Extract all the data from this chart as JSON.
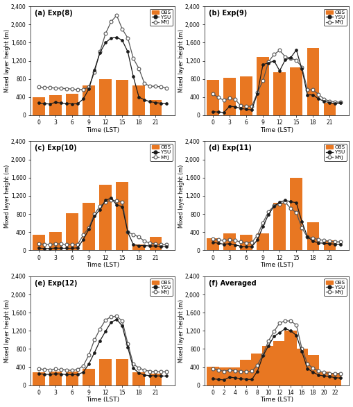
{
  "panels": [
    {
      "label": "(a) Exp(8)",
      "obs_times": [
        0,
        3,
        6,
        9,
        12,
        15,
        18,
        21
      ],
      "obs_values": [
        400,
        450,
        475,
        650,
        800,
        775,
        650,
        330
      ],
      "ysu_times": [
        0,
        1,
        2,
        3,
        4,
        5,
        6,
        7,
        8,
        9,
        10,
        11,
        12,
        13,
        14,
        15,
        16,
        17,
        18,
        19,
        20,
        21,
        22,
        23
      ],
      "ysu_values": [
        270,
        255,
        250,
        285,
        270,
        260,
        250,
        255,
        360,
        580,
        1000,
        1380,
        1600,
        1700,
        1720,
        1650,
        1400,
        850,
        400,
        340,
        300,
        280,
        265,
        255
      ],
      "myj_times": [
        0,
        1,
        2,
        3,
        4,
        5,
        6,
        7,
        8,
        9,
        10,
        11,
        12,
        13,
        14,
        15,
        16,
        17,
        18,
        19,
        20,
        21,
        22,
        23
      ],
      "myj_values": [
        620,
        615,
        610,
        600,
        595,
        588,
        578,
        568,
        570,
        620,
        950,
        1400,
        1800,
        2060,
        2200,
        1900,
        1700,
        1250,
        1030,
        700,
        640,
        640,
        625,
        600
      ]
    },
    {
      "label": "(b) Exp(9)",
      "obs_times": [
        0,
        3,
        6,
        9,
        12,
        15,
        18,
        21
      ],
      "obs_values": [
        780,
        820,
        850,
        1290,
        950,
        1050,
        1490,
        280
      ],
      "ysu_times": [
        0,
        1,
        2,
        3,
        4,
        5,
        6,
        7,
        8,
        9,
        10,
        11,
        12,
        13,
        14,
        15,
        16,
        17,
        18,
        19,
        20,
        21,
        22,
        23
      ],
      "ysu_values": [
        80,
        70,
        65,
        200,
        185,
        155,
        130,
        120,
        480,
        1120,
        1150,
        1200,
        980,
        1220,
        1270,
        1440,
        1020,
        450,
        450,
        360,
        310,
        275,
        260,
        270
      ],
      "myj_times": [
        0,
        1,
        2,
        3,
        4,
        5,
        6,
        7,
        8,
        9,
        10,
        11,
        12,
        13,
        14,
        15,
        16,
        17,
        18,
        19,
        20,
        21,
        22,
        23
      ],
      "myj_values": [
        470,
        390,
        330,
        375,
        350,
        210,
        200,
        195,
        500,
        760,
        1180,
        1340,
        1430,
        1290,
        1260,
        1210,
        1060,
        570,
        560,
        460,
        355,
        310,
        295,
        285
      ]
    },
    {
      "label": "(c) Exp(10)",
      "obs_times": [
        0,
        3,
        6,
        9,
        12,
        15,
        18,
        21
      ],
      "obs_values": [
        350,
        400,
        820,
        1050,
        1450,
        1500,
        130,
        300
      ],
      "ysu_times": [
        0,
        1,
        2,
        3,
        4,
        5,
        6,
        7,
        8,
        9,
        10,
        11,
        12,
        13,
        14,
        15,
        16,
        17,
        18,
        19,
        20,
        21,
        22,
        23
      ],
      "ysu_values": [
        50,
        40,
        40,
        50,
        45,
        45,
        45,
        55,
        240,
        460,
        750,
        900,
        1100,
        1150,
        1000,
        960,
        400,
        125,
        105,
        105,
        95,
        95,
        85,
        75
      ],
      "myj_times": [
        0,
        1,
        2,
        3,
        4,
        5,
        6,
        7,
        8,
        9,
        10,
        11,
        12,
        13,
        14,
        15,
        16,
        17,
        18,
        19,
        20,
        21,
        22,
        23
      ],
      "myj_values": [
        150,
        130,
        125,
        148,
        138,
        128,
        125,
        128,
        340,
        495,
        800,
        970,
        1060,
        1110,
        1090,
        1060,
        405,
        345,
        295,
        200,
        160,
        140,
        128,
        125
      ]
    },
    {
      "label": "(d) Exp(11)",
      "obs_times": [
        0,
        3,
        6,
        9,
        12,
        15,
        18,
        21
      ],
      "obs_values": [
        260,
        380,
        340,
        370,
        1050,
        1600,
        620,
        220
      ],
      "ysu_times": [
        0,
        1,
        2,
        3,
        4,
        5,
        6,
        7,
        8,
        9,
        10,
        11,
        12,
        13,
        14,
        15,
        16,
        17,
        18,
        19,
        20,
        21,
        22,
        23
      ],
      "ysu_values": [
        175,
        155,
        135,
        145,
        120,
        90,
        75,
        80,
        230,
        520,
        790,
        970,
        1060,
        1100,
        1070,
        1050,
        630,
        300,
        200,
        165,
        155,
        145,
        135,
        130
      ],
      "myj_times": [
        0,
        1,
        2,
        3,
        4,
        5,
        6,
        7,
        8,
        9,
        10,
        11,
        12,
        13,
        14,
        15,
        16,
        17,
        18,
        19,
        20,
        21,
        22,
        23
      ],
      "myj_values": [
        250,
        230,
        215,
        230,
        215,
        185,
        165,
        175,
        330,
        610,
        850,
        980,
        1020,
        1060,
        920,
        830,
        490,
        290,
        265,
        240,
        215,
        200,
        190,
        185
      ]
    },
    {
      "label": "(e) Exp(12)",
      "obs_times": [
        0,
        3,
        6,
        9,
        12,
        15,
        18,
        21
      ],
      "obs_values": [
        290,
        300,
        310,
        370,
        580,
        580,
        280,
        250
      ],
      "ysu_times": [
        0,
        1,
        2,
        3,
        4,
        5,
        6,
        7,
        8,
        9,
        10,
        11,
        12,
        13,
        14,
        15,
        16,
        17,
        18,
        19,
        20,
        21,
        22,
        23
      ],
      "ysu_values": [
        255,
        245,
        240,
        255,
        248,
        238,
        235,
        240,
        290,
        470,
        720,
        980,
        1190,
        1390,
        1450,
        1310,
        840,
        380,
        270,
        225,
        215,
        210,
        205,
        205
      ],
      "myj_times": [
        0,
        1,
        2,
        3,
        4,
        5,
        6,
        7,
        8,
        9,
        10,
        11,
        12,
        13,
        14,
        15,
        16,
        17,
        18,
        19,
        20,
        21,
        22,
        23
      ],
      "myj_values": [
        365,
        350,
        340,
        360,
        350,
        335,
        330,
        348,
        430,
        670,
        1000,
        1240,
        1440,
        1510,
        1520,
        1420,
        920,
        465,
        385,
        335,
        310,
        302,
        300,
        298
      ]
    },
    {
      "label": "(f) Averaged",
      "obs_times": [
        0,
        2,
        4,
        6,
        8,
        10,
        12,
        14,
        16,
        18,
        20,
        22
      ],
      "obs_values": [
        416,
        390,
        395,
        560,
        700,
        870,
        970,
        1200,
        800,
        670,
        310,
        275
      ],
      "ysu_times": [
        0,
        1,
        2,
        3,
        4,
        5,
        6,
        7,
        8,
        9,
        10,
        11,
        12,
        13,
        14,
        15,
        16,
        17,
        18,
        19,
        20,
        21,
        22,
        23
      ],
      "ysu_values": [
        145,
        130,
        120,
        180,
        165,
        148,
        132,
        130,
        310,
        650,
        870,
        1080,
        1160,
        1250,
        1200,
        1100,
        740,
        370,
        290,
        225,
        210,
        192,
        170,
        158
      ],
      "myj_times": [
        0,
        1,
        2,
        3,
        4,
        5,
        6,
        7,
        8,
        9,
        10,
        11,
        12,
        13,
        14,
        15,
        16,
        17,
        18,
        19,
        20,
        21,
        22,
        23
      ],
      "myj_values": [
        365,
        335,
        310,
        335,
        325,
        305,
        302,
        312,
        445,
        675,
        980,
        1190,
        1370,
        1420,
        1415,
        1330,
        810,
        475,
        380,
        316,
        282,
        262,
        262,
        258
      ]
    }
  ],
  "obs_color": "#E87722",
  "ysu_color": "#1a1a1a",
  "myj_color": "#555555",
  "ylim": [
    0,
    2400
  ],
  "yticks": [
    0,
    400,
    800,
    1200,
    1600,
    2000,
    2400
  ],
  "ytick_labels": [
    "0",
    "400",
    "800",
    "1,200",
    "1,600",
    "2,000",
    "2,400"
  ],
  "ylabel": "Mixed layer height (m)",
  "xlabel": "Time (LST)",
  "bar_width": 2.2
}
